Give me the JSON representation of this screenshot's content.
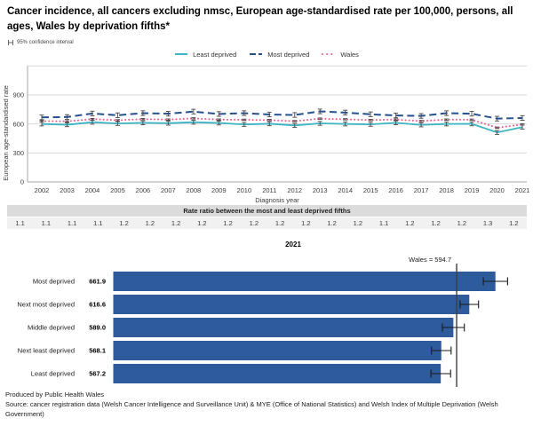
{
  "page": {
    "title": "Cancer incidence, all cancers excluding nmsc, European age-standardised rate per 100,000, persons, all ages, Wales by deprivation fifths*",
    "ci_note": "95% confidence interval",
    "footer": {
      "produced_by": "Produced by Public Health Wales",
      "source": "Source: cancer registration data (Welsh Cancer Intelligence and Surveillance Unit) & MYE (Office of National Statistics) and Welsh Index of Multiple Deprivation (Welsh Government)"
    }
  },
  "icons": {
    "ci_note": "error-bar-icon"
  },
  "colors": {
    "least_deprived": "#3eb4c3",
    "most_deprived": "#27508e",
    "wales": "#ef5f8a",
    "bar_fill": "#2e5b9c",
    "error_bar": "#474747",
    "gridline": "#d9d9d9",
    "axis": "#a6a6a6",
    "reference_line": "#3f3f3f",
    "ratio_header_bg": "#dbdbdb",
    "ratio_values_bg": "#f1f1f1"
  },
  "rate_ratio": {
    "header": "Rate ratio between the most and least deprived fifths",
    "values": [
      "1.1",
      "1.1",
      "1.1",
      "1.1",
      "1.2",
      "1.2",
      "1.2",
      "1.2",
      "1.2",
      "1.2",
      "1.2",
      "1.2",
      "1.2",
      "1.2",
      "1.1",
      "1.2",
      "1.2",
      "1.2",
      "1.3",
      "1.2"
    ]
  },
  "chart_data": [
    {
      "type": "line",
      "xlabel": "Diagnosis year",
      "ylabel": "European age-standardised rate",
      "x": [
        2002,
        2003,
        2004,
        2005,
        2006,
        2007,
        2008,
        2009,
        2010,
        2011,
        2012,
        2013,
        2014,
        2015,
        2016,
        2017,
        2018,
        2019,
        2020,
        2021
      ],
      "ylim": [
        0,
        1250
      ],
      "yticks": [
        0,
        300,
        600,
        900
      ],
      "gridlines": [
        300,
        600,
        900,
        1200
      ],
      "legend_position": "top",
      "series": [
        {
          "name": "Least deprived",
          "style": "solid",
          "ci": 20,
          "values": [
            600,
            592,
            618,
            605,
            612,
            608,
            618,
            610,
            595,
            602,
            585,
            606,
            600,
            596,
            612,
            590,
            600,
            601,
            512,
            567.2
          ]
        },
        {
          "name": "Most deprived",
          "style": "dashed",
          "ci": 24,
          "values": [
            668,
            672,
            708,
            690,
            712,
            706,
            728,
            703,
            712,
            698,
            693,
            730,
            718,
            700,
            688,
            683,
            712,
            706,
            655,
            661.9
          ]
        },
        {
          "name": "Wales",
          "style": "dotted",
          "ci": 7,
          "values": [
            630,
            627,
            650,
            638,
            650,
            645,
            658,
            645,
            643,
            640,
            629,
            655,
            648,
            640,
            646,
            630,
            645,
            644,
            561,
            594.7
          ]
        }
      ]
    },
    {
      "type": "bar",
      "orientation": "horizontal",
      "title": "2021",
      "categories": [
        "Most deprived",
        "Next most deprived",
        "Middle deprived",
        "Next least deprived",
        "Least deprived"
      ],
      "values": [
        661.9,
        616.6,
        589.0,
        568.1,
        567.2
      ],
      "value_labels": [
        "661.9",
        "616.6",
        "589.0",
        "568.1",
        "567.2"
      ],
      "ci": [
        21,
        16,
        19,
        17,
        17
      ],
      "reference_line": {
        "name": "Wales",
        "value": 594.7,
        "label_text": "Wales  =  594.7"
      }
    }
  ]
}
